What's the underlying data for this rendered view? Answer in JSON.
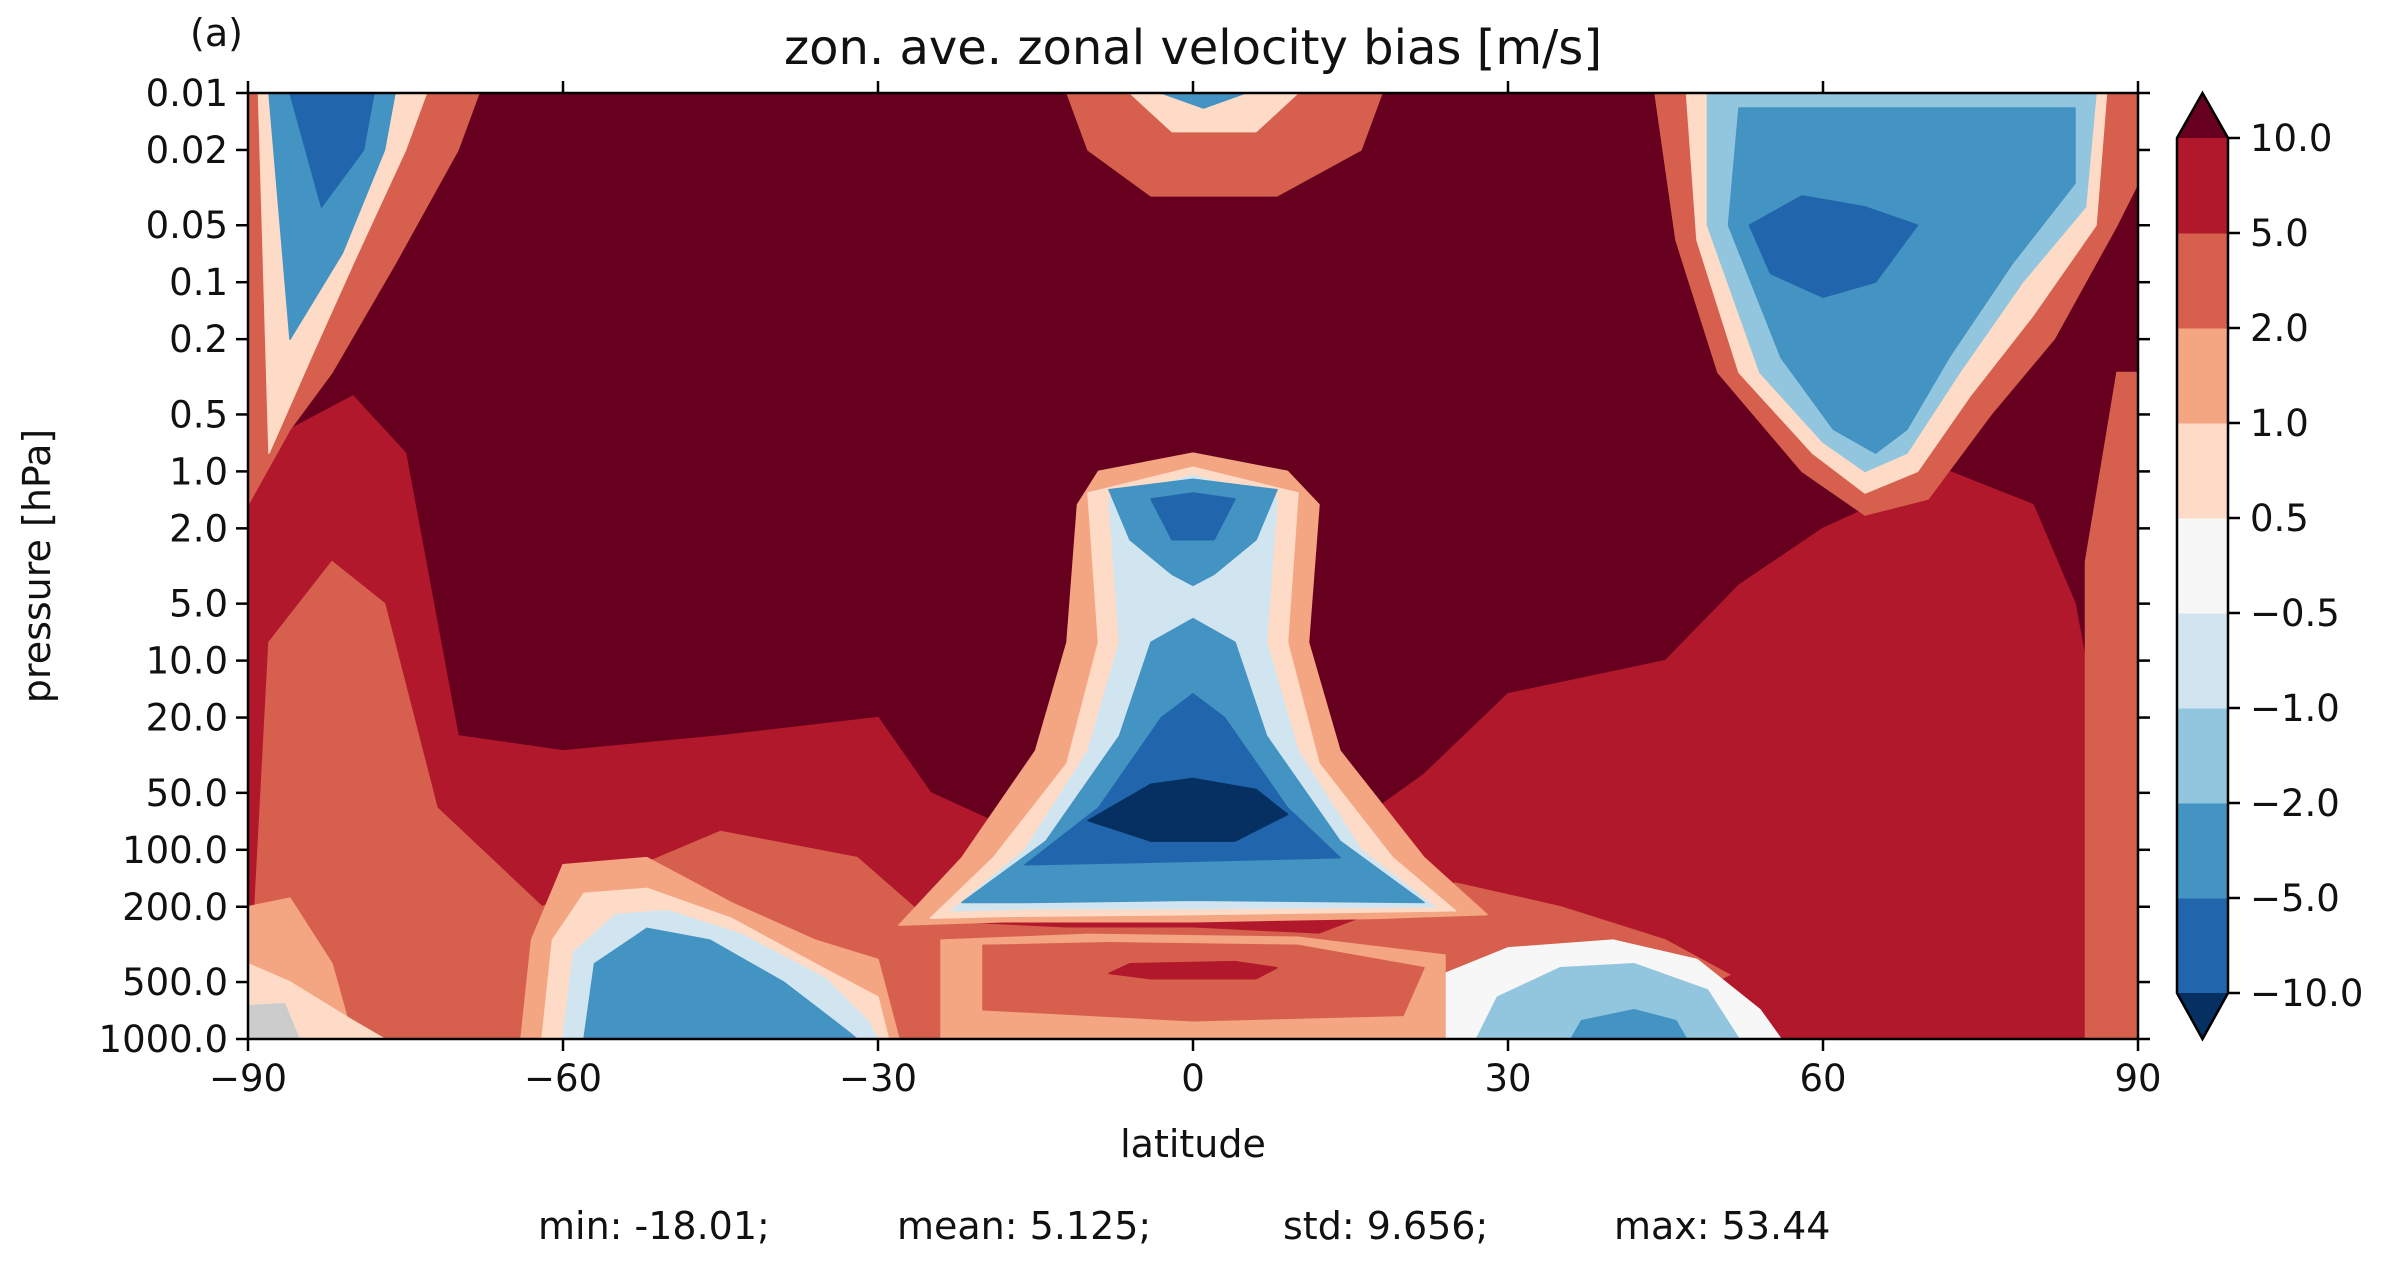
{
  "panel_label": "(a)",
  "chart_data": {
    "type": "filled-contour",
    "title": "zon. ave. zonal velocity bias [m/s]",
    "xlabel": "latitude",
    "ylabel": "pressure [hPa]",
    "xlim": [
      -90,
      90
    ],
    "ylim": [
      1000.0,
      0.01
    ],
    "y_scale": "log (inverted)",
    "x_ticks": [
      "−90",
      "−60",
      "−30",
      "0",
      "30",
      "60",
      "90"
    ],
    "y_ticks": [
      "0.01",
      "0.02",
      "0.05",
      "0.1",
      "0.2",
      "0.5",
      "1.0",
      "2.0",
      "5.0",
      "10.0",
      "20.0",
      "50.0",
      "100.0",
      "200.0",
      "500.0",
      "1000.0"
    ],
    "colorbar": {
      "extend": "both",
      "tick_labels": [
        "10.0",
        "5.0",
        "2.0",
        "1.0",
        "0.5",
        "−0.5",
        "−1.0",
        "−2.0",
        "−5.0",
        "−10.0"
      ],
      "levels": [
        -10,
        -5,
        -2,
        -1,
        -0.5,
        0.5,
        1,
        2,
        5,
        10
      ],
      "colors": [
        "#053061",
        "#2166ac",
        "#4393c3",
        "#92c5de",
        "#d1e5f0",
        "#f7f7f7",
        "#fddbc7",
        "#f4a582",
        "#d6604d",
        "#b2182b",
        "#67001f"
      ]
    },
    "features": [
      {
        "label": "max (>10)",
        "lat": -15,
        "p": 0.5
      },
      {
        "label": "min (<-10)",
        "lat": 0,
        "p": 70
      },
      {
        "label": "min (<-5)",
        "lat": 62,
        "p": 0.06
      },
      {
        "label": "min (<-5)",
        "lat": -80,
        "p": 0.02
      },
      {
        "label": "min (<-5)",
        "lat": 0,
        "p": 1.5
      },
      {
        "label": "local (5..10)",
        "lat": 0,
        "p": 400
      }
    ],
    "stats": {
      "min": "min: -18.01;",
      "mean": "mean: 5.125;",
      "std": "std: 9.656;",
      "max": "max: 53.44"
    }
  }
}
